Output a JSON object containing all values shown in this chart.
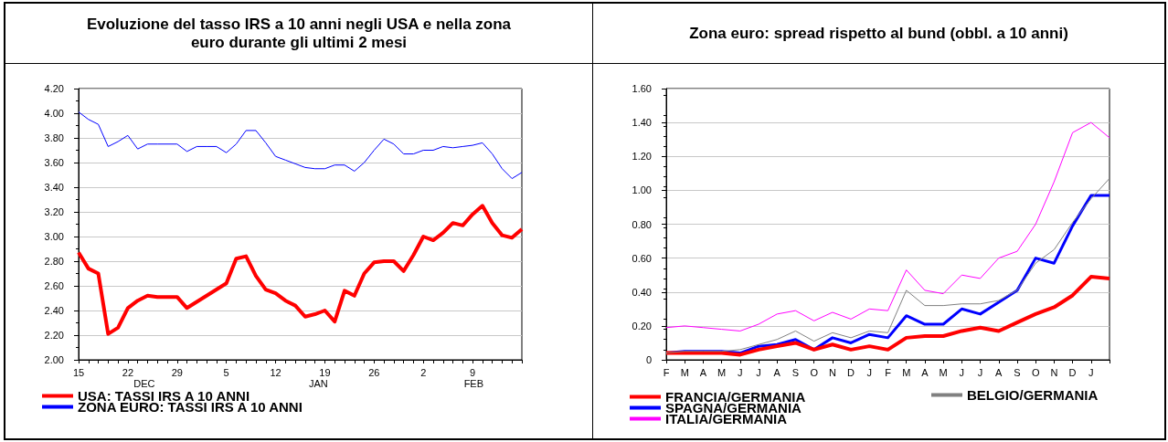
{
  "chart_data": [
    {
      "type": "line",
      "title": "Evoluzione del tasso IRS a 10 anni negli USA e nella zona euro durante gli ultimi 2 mesi",
      "categories": [
        "15",
        null,
        null,
        null,
        null,
        "22",
        null,
        null,
        null,
        null,
        "29",
        null,
        null,
        null,
        null,
        "5",
        null,
        null,
        null,
        null,
        "12",
        null,
        null,
        null,
        null,
        "19",
        null,
        null,
        null,
        null,
        "26",
        null,
        null,
        null,
        null,
        "2",
        null,
        null,
        null,
        null,
        "9",
        null,
        null,
        null,
        null,
        null
      ],
      "series": [
        {
          "name": "USA: TASSI IRS A 10 ANNI",
          "color": "#ff0000",
          "values": [
            2.87,
            2.74,
            2.7,
            2.21,
            2.26,
            2.42,
            2.48,
            2.52,
            2.51,
            2.51,
            2.51,
            2.42,
            2.47,
            2.52,
            2.57,
            2.62,
            2.82,
            2.84,
            2.68,
            2.57,
            2.54,
            2.48,
            2.44,
            2.35,
            2.37,
            2.4,
            2.31,
            2.56,
            2.52,
            2.7,
            2.79,
            2.8,
            2.8,
            2.72,
            2.85,
            3.0,
            2.97,
            3.03,
            3.11,
            3.09,
            3.18,
            3.25,
            3.11,
            3.01,
            2.99,
            3.06
          ]
        },
        {
          "name": "ZONA EURO: TASSI IRS A 10 ANNI",
          "color": "#0000ff",
          "values": [
            4.01,
            3.95,
            3.91,
            3.73,
            3.77,
            3.82,
            3.71,
            3.75,
            3.75,
            3.75,
            3.75,
            3.69,
            3.73,
            3.73,
            3.73,
            3.68,
            3.75,
            3.86,
            3.86,
            3.76,
            3.65,
            3.62,
            3.59,
            3.56,
            3.55,
            3.55,
            3.58,
            3.58,
            3.53,
            3.6,
            3.7,
            3.79,
            3.75,
            3.67,
            3.67,
            3.7,
            3.7,
            3.73,
            3.72,
            3.73,
            3.74,
            3.76,
            3.67,
            3.55,
            3.47,
            3.52
          ]
        }
      ],
      "ylim": [
        2.0,
        4.2
      ],
      "yticks": [
        {
          "value": 2.0,
          "label": "2.00"
        },
        {
          "value": 2.2,
          "label": "2.20"
        },
        {
          "value": 2.4,
          "label": "2.40"
        },
        {
          "value": 2.6,
          "label": "2.60"
        },
        {
          "value": 2.8,
          "label": "2.80"
        },
        {
          "value": 3.0,
          "label": "3.00"
        },
        {
          "value": 3.2,
          "label": "3.20"
        },
        {
          "value": 3.4,
          "label": "3.40"
        },
        {
          "value": 3.6,
          "label": "3.60"
        },
        {
          "value": 3.8,
          "label": "3.80"
        },
        {
          "value": 4.0,
          "label": "4.00"
        },
        {
          "value": 4.2,
          "label": "4.20"
        }
      ],
      "annotations": [
        "DEC",
        "JAN",
        "FEB"
      ],
      "grid": "y",
      "legend": "bottom left",
      "marker": "none",
      "line_style": "solid"
    },
    {
      "type": "line",
      "title": "Zona euro: spread rispetto al bund (obbl. a 10 anni)",
      "categories": [
        "F",
        "M",
        "A",
        "M",
        "J",
        "J",
        "A",
        "S",
        "O",
        "N",
        "D",
        "J",
        "F",
        "M",
        "A",
        "M",
        "J",
        "J",
        "A",
        "S",
        "O",
        "N",
        "D",
        "J",
        null
      ],
      "series": [
        {
          "name": "FRANCIA/GERMANIA",
          "color": "#ff0000",
          "values": [
            0.04,
            0.04,
            0.04,
            0.04,
            0.03,
            0.06,
            0.08,
            0.1,
            0.06,
            0.09,
            0.06,
            0.08,
            0.06,
            0.13,
            0.14,
            0.14,
            0.17,
            0.19,
            0.17,
            0.22,
            0.27,
            0.31,
            0.38,
            0.49,
            0.48
          ]
        },
        {
          "name": "SPAGNA/GERMANIA",
          "color": "#0000ff",
          "values": [
            0.04,
            0.05,
            0.05,
            0.05,
            0.04,
            0.08,
            0.09,
            0.12,
            0.06,
            0.13,
            0.1,
            0.15,
            0.13,
            0.26,
            0.21,
            0.21,
            0.3,
            0.27,
            0.34,
            0.41,
            0.6,
            0.57,
            0.79,
            0.97,
            0.97
          ]
        },
        {
          "name": "ITALIA/GERMANIA",
          "color": "#ff00ff",
          "values": [
            0.19,
            0.2,
            0.19,
            0.18,
            0.17,
            0.21,
            0.27,
            0.29,
            0.23,
            0.28,
            0.24,
            0.3,
            0.29,
            0.53,
            0.41,
            0.39,
            0.5,
            0.48,
            0.6,
            0.64,
            0.8,
            1.05,
            1.34,
            1.4,
            1.31
          ]
        },
        {
          "name": "BELGIO/GERMANIA",
          "color": "#808080",
          "values": [
            0.04,
            0.05,
            0.05,
            0.05,
            0.06,
            0.09,
            0.12,
            0.17,
            0.11,
            0.16,
            0.13,
            0.17,
            0.16,
            0.41,
            0.32,
            0.32,
            0.33,
            0.33,
            0.35,
            0.41,
            0.57,
            0.65,
            0.81,
            0.95,
            1.07
          ]
        }
      ],
      "ylim": [
        0,
        1.6
      ],
      "yticks": [
        0,
        {
          "value": 0.2,
          "label": "0.20"
        },
        {
          "value": 0.4,
          "label": "0.40"
        },
        {
          "value": 0.6,
          "label": "0.60"
        },
        {
          "value": 0.8,
          "label": "0.80"
        },
        {
          "value": 1.0,
          "label": "1.00"
        },
        {
          "value": 1.2,
          "label": "1.20"
        },
        {
          "value": 1.4,
          "label": "1.40"
        },
        {
          "value": 1.6,
          "label": "1.60"
        }
      ],
      "grid": "y",
      "legend": "bottom left",
      "marker": "none",
      "line_style": "solid"
    }
  ]
}
